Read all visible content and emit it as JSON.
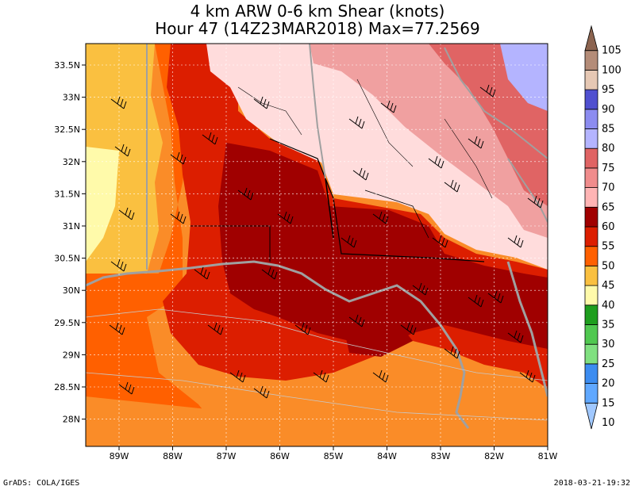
{
  "title": {
    "line1": "4 km ARW 0-6 km Shear (knots)",
    "line2": "Hour 47 (14Z23MAR2018) Max=77.2569"
  },
  "map": {
    "lat_labels": [
      "33.5N",
      "33N",
      "32.5N",
      "32N",
      "31.5N",
      "31N",
      "30.5N",
      "30N",
      "29.5N",
      "29N",
      "28.5N",
      "28N"
    ],
    "lon_labels": [
      "89W",
      "88W",
      "87W",
      "86W",
      "85W",
      "84W",
      "83W",
      "82W",
      "81W"
    ]
  },
  "colorbar": {
    "labels": [
      "10",
      "15",
      "20",
      "25",
      "30",
      "35",
      "40",
      "45",
      "50",
      "55",
      "60",
      "65",
      "70",
      "75",
      "80",
      "85",
      "90",
      "95",
      "100",
      "105"
    ],
    "colors": [
      "#a0c8ff",
      "#60a8ff",
      "#3c8cf0",
      "#80e080",
      "#50c850",
      "#1e9e1e",
      "#fffaaa",
      "#fac040",
      "#ff6000",
      "#dc1e00",
      "#a00000",
      "#ffb4b4",
      "#f08c8c",
      "#e06464",
      "#b4b4ff",
      "#8c8cf0",
      "#5050d0",
      "#e6c8b4",
      "#b48c78",
      "#8c6450"
    ]
  },
  "footer": {
    "left": "GrADS: COLA/IGES",
    "right": "2018-03-21-19:32"
  }
}
